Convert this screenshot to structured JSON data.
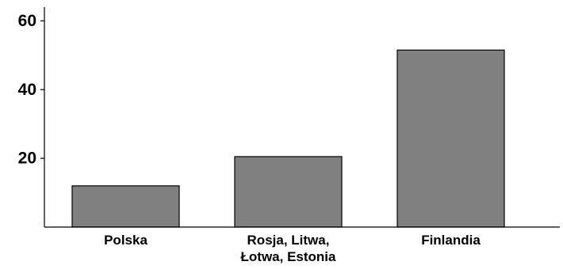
{
  "chart_data": {
    "type": "bar",
    "categories": [
      [
        "Polska"
      ],
      [
        "Rosja, Litwa,",
        "Łotwa, Estonia"
      ],
      [
        "Finlandia"
      ]
    ],
    "values": [
      12,
      20.5,
      51.5
    ],
    "yticks": [
      20,
      40,
      60
    ],
    "ylim": [
      0,
      64
    ],
    "title": "",
    "xlabel": "",
    "ylabel": "",
    "grid": false,
    "bar_color": "#808080"
  }
}
